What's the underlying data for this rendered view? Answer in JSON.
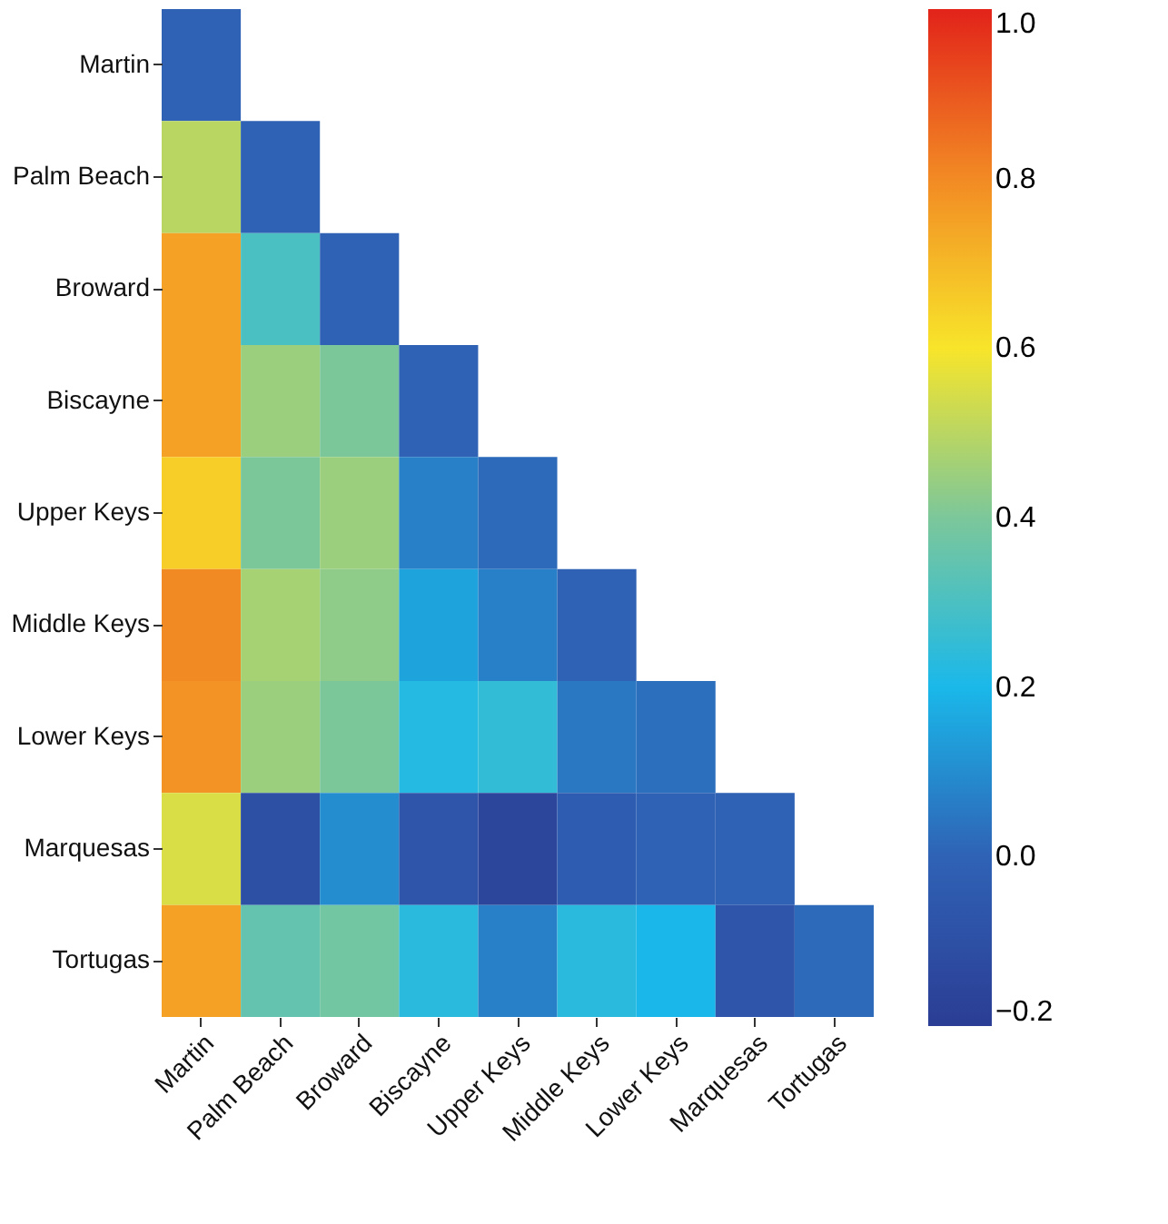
{
  "chart_data": {
    "type": "heatmap",
    "categories": [
      "Martin",
      "Palm Beach",
      "Broward",
      "Biscayne",
      "Upper Keys",
      "Middle Keys",
      "Lower Keys",
      "Marquesas",
      "Tortugas"
    ],
    "y_categories": [
      "Martin",
      "Palm Beach",
      "Broward",
      "Biscayne",
      "Upper Keys",
      "Middle Keys",
      "Lower Keys",
      "Marquesas",
      "Tortugas"
    ],
    "cells": [
      [
        0.0,
        null,
        null,
        null,
        null,
        null,
        null,
        null,
        null
      ],
      [
        0.5,
        0.0,
        null,
        null,
        null,
        null,
        null,
        null,
        null
      ],
      [
        0.75,
        0.3,
        0.0,
        null,
        null,
        null,
        null,
        null,
        null
      ],
      [
        0.75,
        0.45,
        0.4,
        0.0,
        null,
        null,
        null,
        null,
        null
      ],
      [
        0.65,
        0.4,
        0.45,
        0.07,
        0.02,
        null,
        null,
        null,
        null
      ],
      [
        0.8,
        0.47,
        0.43,
        0.15,
        0.07,
        0.0,
        null,
        null,
        null
      ],
      [
        0.78,
        0.45,
        0.4,
        0.22,
        0.25,
        0.05,
        0.03,
        null,
        null
      ],
      [
        0.55,
        -0.1,
        0.1,
        -0.07,
        -0.15,
        -0.03,
        0.0,
        0.0,
        null
      ],
      [
        0.75,
        0.35,
        0.38,
        0.23,
        0.07,
        0.23,
        0.2,
        -0.07,
        0.02
      ]
    ],
    "clim": [
      -0.2,
      1.0
    ],
    "cticks": [
      {
        "value": -0.2,
        "label": "−0.2"
      },
      {
        "value": 0,
        "label": "0.0"
      },
      {
        "value": 0.2,
        "label": "0.2"
      },
      {
        "value": 0.4,
        "label": "0.4"
      },
      {
        "value": 0.6,
        "label": "0.6"
      },
      {
        "value": 0.8,
        "label": "0.8"
      },
      {
        "value": 1,
        "label": "1.0"
      }
    ]
  }
}
